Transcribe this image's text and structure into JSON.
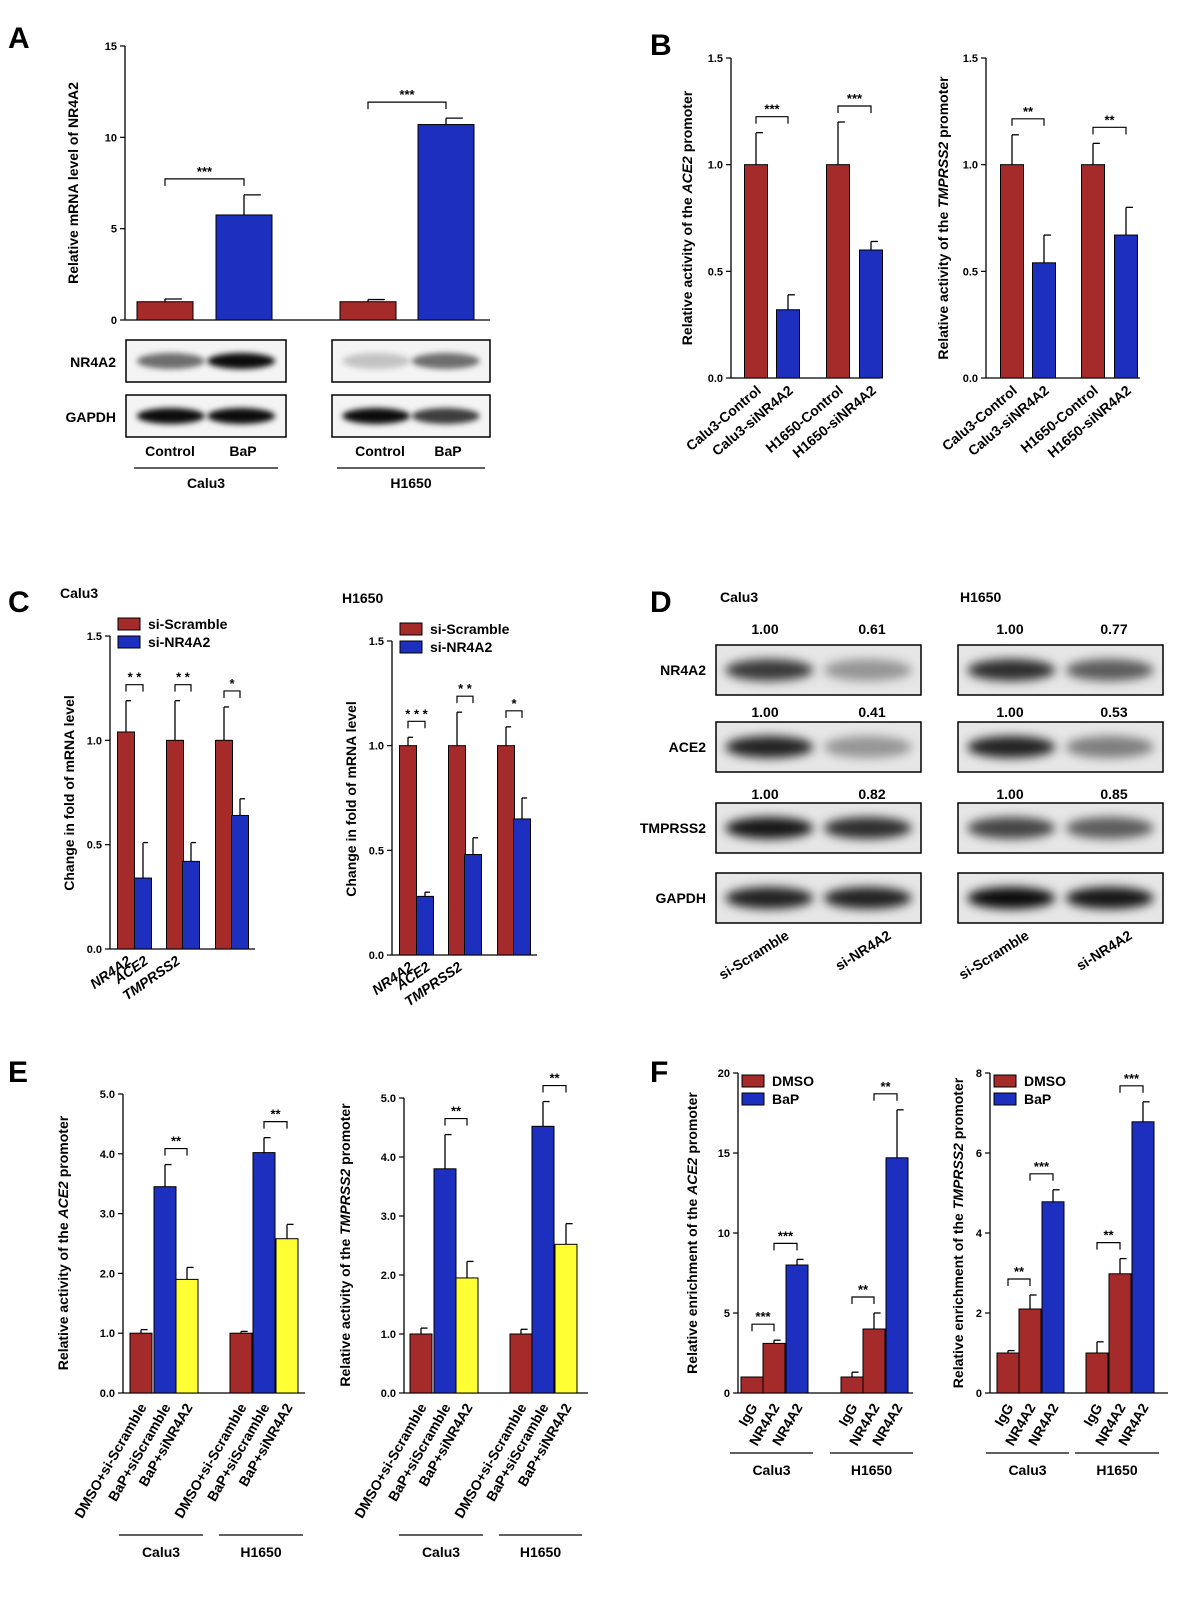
{
  "colors": {
    "red": "#a52a2a",
    "blue": "#1c2fbf",
    "yellow": "#ffff33"
  },
  "panel_letters": [
    "A",
    "B",
    "C",
    "D",
    "E",
    "F"
  ],
  "chart_data": [
    {
      "id": "A",
      "type": "bar",
      "ylabel": "Relative mRNA level of NR4A2",
      "ylim": [
        0,
        15
      ],
      "yticks": [
        0,
        5,
        10,
        15
      ],
      "bars": [
        {
          "value": 1.0,
          "error": 0.15,
          "color": "red"
        },
        {
          "value": 5.75,
          "error": 1.1,
          "color": "blue"
        },
        {
          "value": 1.0,
          "error": 0.12,
          "color": "red"
        },
        {
          "value": 10.7,
          "error": 0.35,
          "color": "blue"
        }
      ],
      "sig": [
        {
          "from": 0,
          "to": 1,
          "label": "***"
        },
        {
          "from": 2,
          "to": 3,
          "label": "***"
        }
      ]
    },
    {
      "id": "B1",
      "type": "bar",
      "ylabel_parts": [
        "Relative activity of the ",
        "ACE2",
        " promoter"
      ],
      "ylim": [
        0,
        1.5
      ],
      "yticks": [
        "0.0",
        "0.5",
        "1.0",
        "1.5"
      ],
      "categories": [
        "Calu3-Control",
        "Calu3-siNR4A2",
        "H1650-Control",
        "H1650-siNR4A2"
      ],
      "bars": [
        {
          "value": 1.0,
          "error": 0.15,
          "color": "red"
        },
        {
          "value": 0.32,
          "error": 0.07,
          "color": "blue"
        },
        {
          "value": 1.0,
          "error": 0.2,
          "color": "red"
        },
        {
          "value": 0.6,
          "error": 0.04,
          "color": "blue"
        }
      ],
      "sig": [
        {
          "from": 0,
          "to": 1,
          "label": "***"
        },
        {
          "from": 2,
          "to": 3,
          "label": "***"
        }
      ]
    },
    {
      "id": "B2",
      "type": "bar",
      "ylabel_parts": [
        "Relative activity of the ",
        "TMPRSS2",
        " promoter"
      ],
      "ylim": [
        0,
        1.5
      ],
      "yticks": [
        "0.0",
        "0.5",
        "1.0",
        "1.5"
      ],
      "categories": [
        "Calu3-Control",
        "Calu3-siNR4A2",
        "H1650-Control",
        "H1650-siNR4A2"
      ],
      "bars": [
        {
          "value": 1.0,
          "error": 0.14,
          "color": "red"
        },
        {
          "value": 0.54,
          "error": 0.13,
          "color": "blue"
        },
        {
          "value": 1.0,
          "error": 0.1,
          "color": "red"
        },
        {
          "value": 0.67,
          "error": 0.13,
          "color": "blue"
        }
      ],
      "sig": [
        {
          "from": 0,
          "to": 1,
          "label": "**"
        },
        {
          "from": 2,
          "to": 3,
          "label": "**"
        }
      ]
    },
    {
      "id": "C1",
      "type": "bar",
      "title": "Calu3",
      "ylabel": "Change in fold of mRNA level",
      "ylim": [
        0,
        1.5
      ],
      "yticks": [
        "0.0",
        "0.5",
        "1.0",
        "1.5"
      ],
      "categories": [
        "NR4A2",
        "ACE2",
        "TMPRSS2"
      ],
      "legend": [
        "si-Scramble",
        "si-NR4A2"
      ],
      "bars": [
        {
          "value": 1.04,
          "error": 0.15,
          "color": "red"
        },
        {
          "value": 0.34,
          "error": 0.17,
          "color": "blue"
        },
        {
          "value": 1.0,
          "error": 0.19,
          "color": "red"
        },
        {
          "value": 0.42,
          "error": 0.09,
          "color": "blue"
        },
        {
          "value": 1.0,
          "error": 0.16,
          "color": "red"
        },
        {
          "value": 0.64,
          "error": 0.08,
          "color": "blue"
        }
      ],
      "sig": [
        {
          "from": 0,
          "to": 1,
          "label": "* *"
        },
        {
          "from": 2,
          "to": 3,
          "label": "* *"
        },
        {
          "from": 4,
          "to": 5,
          "label": "*"
        }
      ]
    },
    {
      "id": "C2",
      "type": "bar",
      "title": "H1650",
      "ylabel": "Change in fold of mRNA level",
      "ylim": [
        0,
        1.5
      ],
      "yticks": [
        "0.0",
        "0.5",
        "1.0",
        "1.5"
      ],
      "categories": [
        "NR4A2",
        "ACE2",
        "TMPRSS2"
      ],
      "legend": [
        "si-Scramble",
        "si-NR4A2"
      ],
      "bars": [
        {
          "value": 1.0,
          "error": 0.04,
          "color": "red"
        },
        {
          "value": 0.28,
          "error": 0.02,
          "color": "blue"
        },
        {
          "value": 1.0,
          "error": 0.16,
          "color": "red"
        },
        {
          "value": 0.48,
          "error": 0.08,
          "color": "blue"
        },
        {
          "value": 1.0,
          "error": 0.09,
          "color": "red"
        },
        {
          "value": 0.65,
          "error": 0.1,
          "color": "blue"
        }
      ],
      "sig": [
        {
          "from": 0,
          "to": 1,
          "label": "* * *"
        },
        {
          "from": 2,
          "to": 3,
          "label": "* *"
        },
        {
          "from": 4,
          "to": 5,
          "label": "*"
        }
      ]
    },
    {
      "id": "E1",
      "type": "bar",
      "ylabel_parts": [
        "Relative activity of the ",
        "ACE2",
        " promoter"
      ],
      "ylim": [
        0,
        5
      ],
      "yticks": [
        "0.0",
        "1.0",
        "2.0",
        "3.0",
        "4.0",
        "5.0"
      ],
      "categories": [
        "DMSO+si-Scramble",
        "BaP+siScramble",
        "BaP+siNR4A2",
        "DMSO+si-Scramble",
        "BaP+siScramble",
        "BaP+siNR4A2"
      ],
      "groups": [
        "Calu3",
        "H1650"
      ],
      "bars": [
        {
          "value": 1.0,
          "error": 0.06,
          "color": "red"
        },
        {
          "value": 3.45,
          "error": 0.37,
          "color": "blue"
        },
        {
          "value": 1.9,
          "error": 0.2,
          "color": "yellow"
        },
        {
          "value": 1.0,
          "error": 0.03,
          "color": "red"
        },
        {
          "value": 4.02,
          "error": 0.25,
          "color": "blue"
        },
        {
          "value": 2.58,
          "error": 0.24,
          "color": "yellow"
        }
      ],
      "sig": [
        {
          "from": 1,
          "to": 2,
          "label": "**"
        },
        {
          "from": 4,
          "to": 5,
          "label": "**"
        }
      ]
    },
    {
      "id": "E2",
      "type": "bar",
      "ylabel_parts": [
        "Relative activity of the ",
        "TMPRSS2",
        " promoter"
      ],
      "ylim": [
        0,
        5
      ],
      "yticks": [
        "0.0",
        "1.0",
        "2.0",
        "3.0",
        "4.0",
        "5.0"
      ],
      "categories": [
        "DMSO+si-Scramble",
        "BaP+siScramble",
        "BaP+siNR4A2",
        "DMSO+si-Scramble",
        "BaP+siScramble",
        "BaP+siNR4A2"
      ],
      "groups": [
        "Calu3",
        "H1650"
      ],
      "bars": [
        {
          "value": 1.0,
          "error": 0.1,
          "color": "red"
        },
        {
          "value": 3.8,
          "error": 0.58,
          "color": "blue"
        },
        {
          "value": 1.95,
          "error": 0.28,
          "color": "yellow"
        },
        {
          "value": 1.0,
          "error": 0.08,
          "color": "red"
        },
        {
          "value": 4.52,
          "error": 0.42,
          "color": "blue"
        },
        {
          "value": 2.52,
          "error": 0.35,
          "color": "yellow"
        }
      ],
      "sig": [
        {
          "from": 1,
          "to": 2,
          "label": "**"
        },
        {
          "from": 4,
          "to": 5,
          "label": "**"
        }
      ]
    },
    {
      "id": "F1",
      "type": "bar",
      "ylabel_parts": [
        "Relative enrichment of the ",
        "ACE2",
        " promoter"
      ],
      "ylim": [
        0,
        20
      ],
      "yticks": [
        "0",
        "5",
        "10",
        "15",
        "20"
      ],
      "categories": [
        "IgG",
        "NR4A2",
        "NR4A2",
        "IgG",
        "NR4A2",
        "NR4A2"
      ],
      "groups": [
        "Calu3",
        "H1650"
      ],
      "legend": [
        "DMSO",
        "BaP"
      ],
      "bars": [
        {
          "value": 1.0,
          "error": 0.0,
          "color": "red"
        },
        {
          "value": 3.1,
          "error": 0.2,
          "color": "red"
        },
        {
          "value": 8.0,
          "error": 0.35,
          "color": "blue"
        },
        {
          "value": 1.0,
          "error": 0.3,
          "color": "red"
        },
        {
          "value": 4.0,
          "error": 1.0,
          "color": "red"
        },
        {
          "value": 14.7,
          "error": 3.0,
          "color": "blue"
        }
      ],
      "sig": [
        {
          "from": 0,
          "to": 1,
          "label": "***"
        },
        {
          "from": 1,
          "to": 2,
          "label": "***"
        },
        {
          "from": 3,
          "to": 4,
          "label": "**"
        },
        {
          "from": 4,
          "to": 5,
          "label": "**"
        }
      ]
    },
    {
      "id": "F2",
      "type": "bar",
      "ylabel_parts": [
        "Relative enrichment of the ",
        "TMPRSS2",
        " promoter"
      ],
      "ylim": [
        0,
        8
      ],
      "yticks": [
        "0",
        "2",
        "4",
        "6",
        "8"
      ],
      "categories": [
        "IgG",
        "NR4A2",
        "NR4A2",
        "IgG",
        "NR4A2",
        "NR4A2"
      ],
      "groups": [
        "Calu3",
        "H1650"
      ],
      "legend": [
        "DMSO",
        "BaP"
      ],
      "bars": [
        {
          "value": 1.0,
          "error": 0.06,
          "color": "red"
        },
        {
          "value": 2.1,
          "error": 0.35,
          "color": "red"
        },
        {
          "value": 4.78,
          "error": 0.3,
          "color": "blue"
        },
        {
          "value": 1.0,
          "error": 0.28,
          "color": "red"
        },
        {
          "value": 2.98,
          "error": 0.38,
          "color": "red"
        },
        {
          "value": 6.78,
          "error": 0.5,
          "color": "blue"
        }
      ],
      "sig": [
        {
          "from": 0,
          "to": 1,
          "label": "**"
        },
        {
          "from": 1,
          "to": 2,
          "label": "***"
        },
        {
          "from": 3,
          "to": 4,
          "label": "**"
        },
        {
          "from": 4,
          "to": 5,
          "label": "***"
        }
      ]
    }
  ],
  "blot_A": {
    "rows": [
      "NR4A2",
      "GAPDH"
    ],
    "lanes": [
      "Control",
      "BaP",
      "Control",
      "BaP"
    ],
    "groups": [
      "Calu3",
      "H1650"
    ]
  },
  "blot_D": {
    "groups": [
      "Calu3",
      "H1650"
    ],
    "rows": [
      {
        "label": "NR4A2",
        "values": [
          "1.00",
          "0.61",
          "1.00",
          "0.77"
        ]
      },
      {
        "label": "ACE2",
        "values": [
          "1.00",
          "0.41",
          "1.00",
          "0.53"
        ]
      },
      {
        "label": "TMPRSS2",
        "values": [
          "1.00",
          "0.82",
          "1.00",
          "0.85"
        ]
      },
      {
        "label": "GAPDH"
      }
    ],
    "lanes": [
      "si-Scramble",
      "si-NR4A2",
      "si-Scramble",
      "si-NR4A2"
    ]
  }
}
